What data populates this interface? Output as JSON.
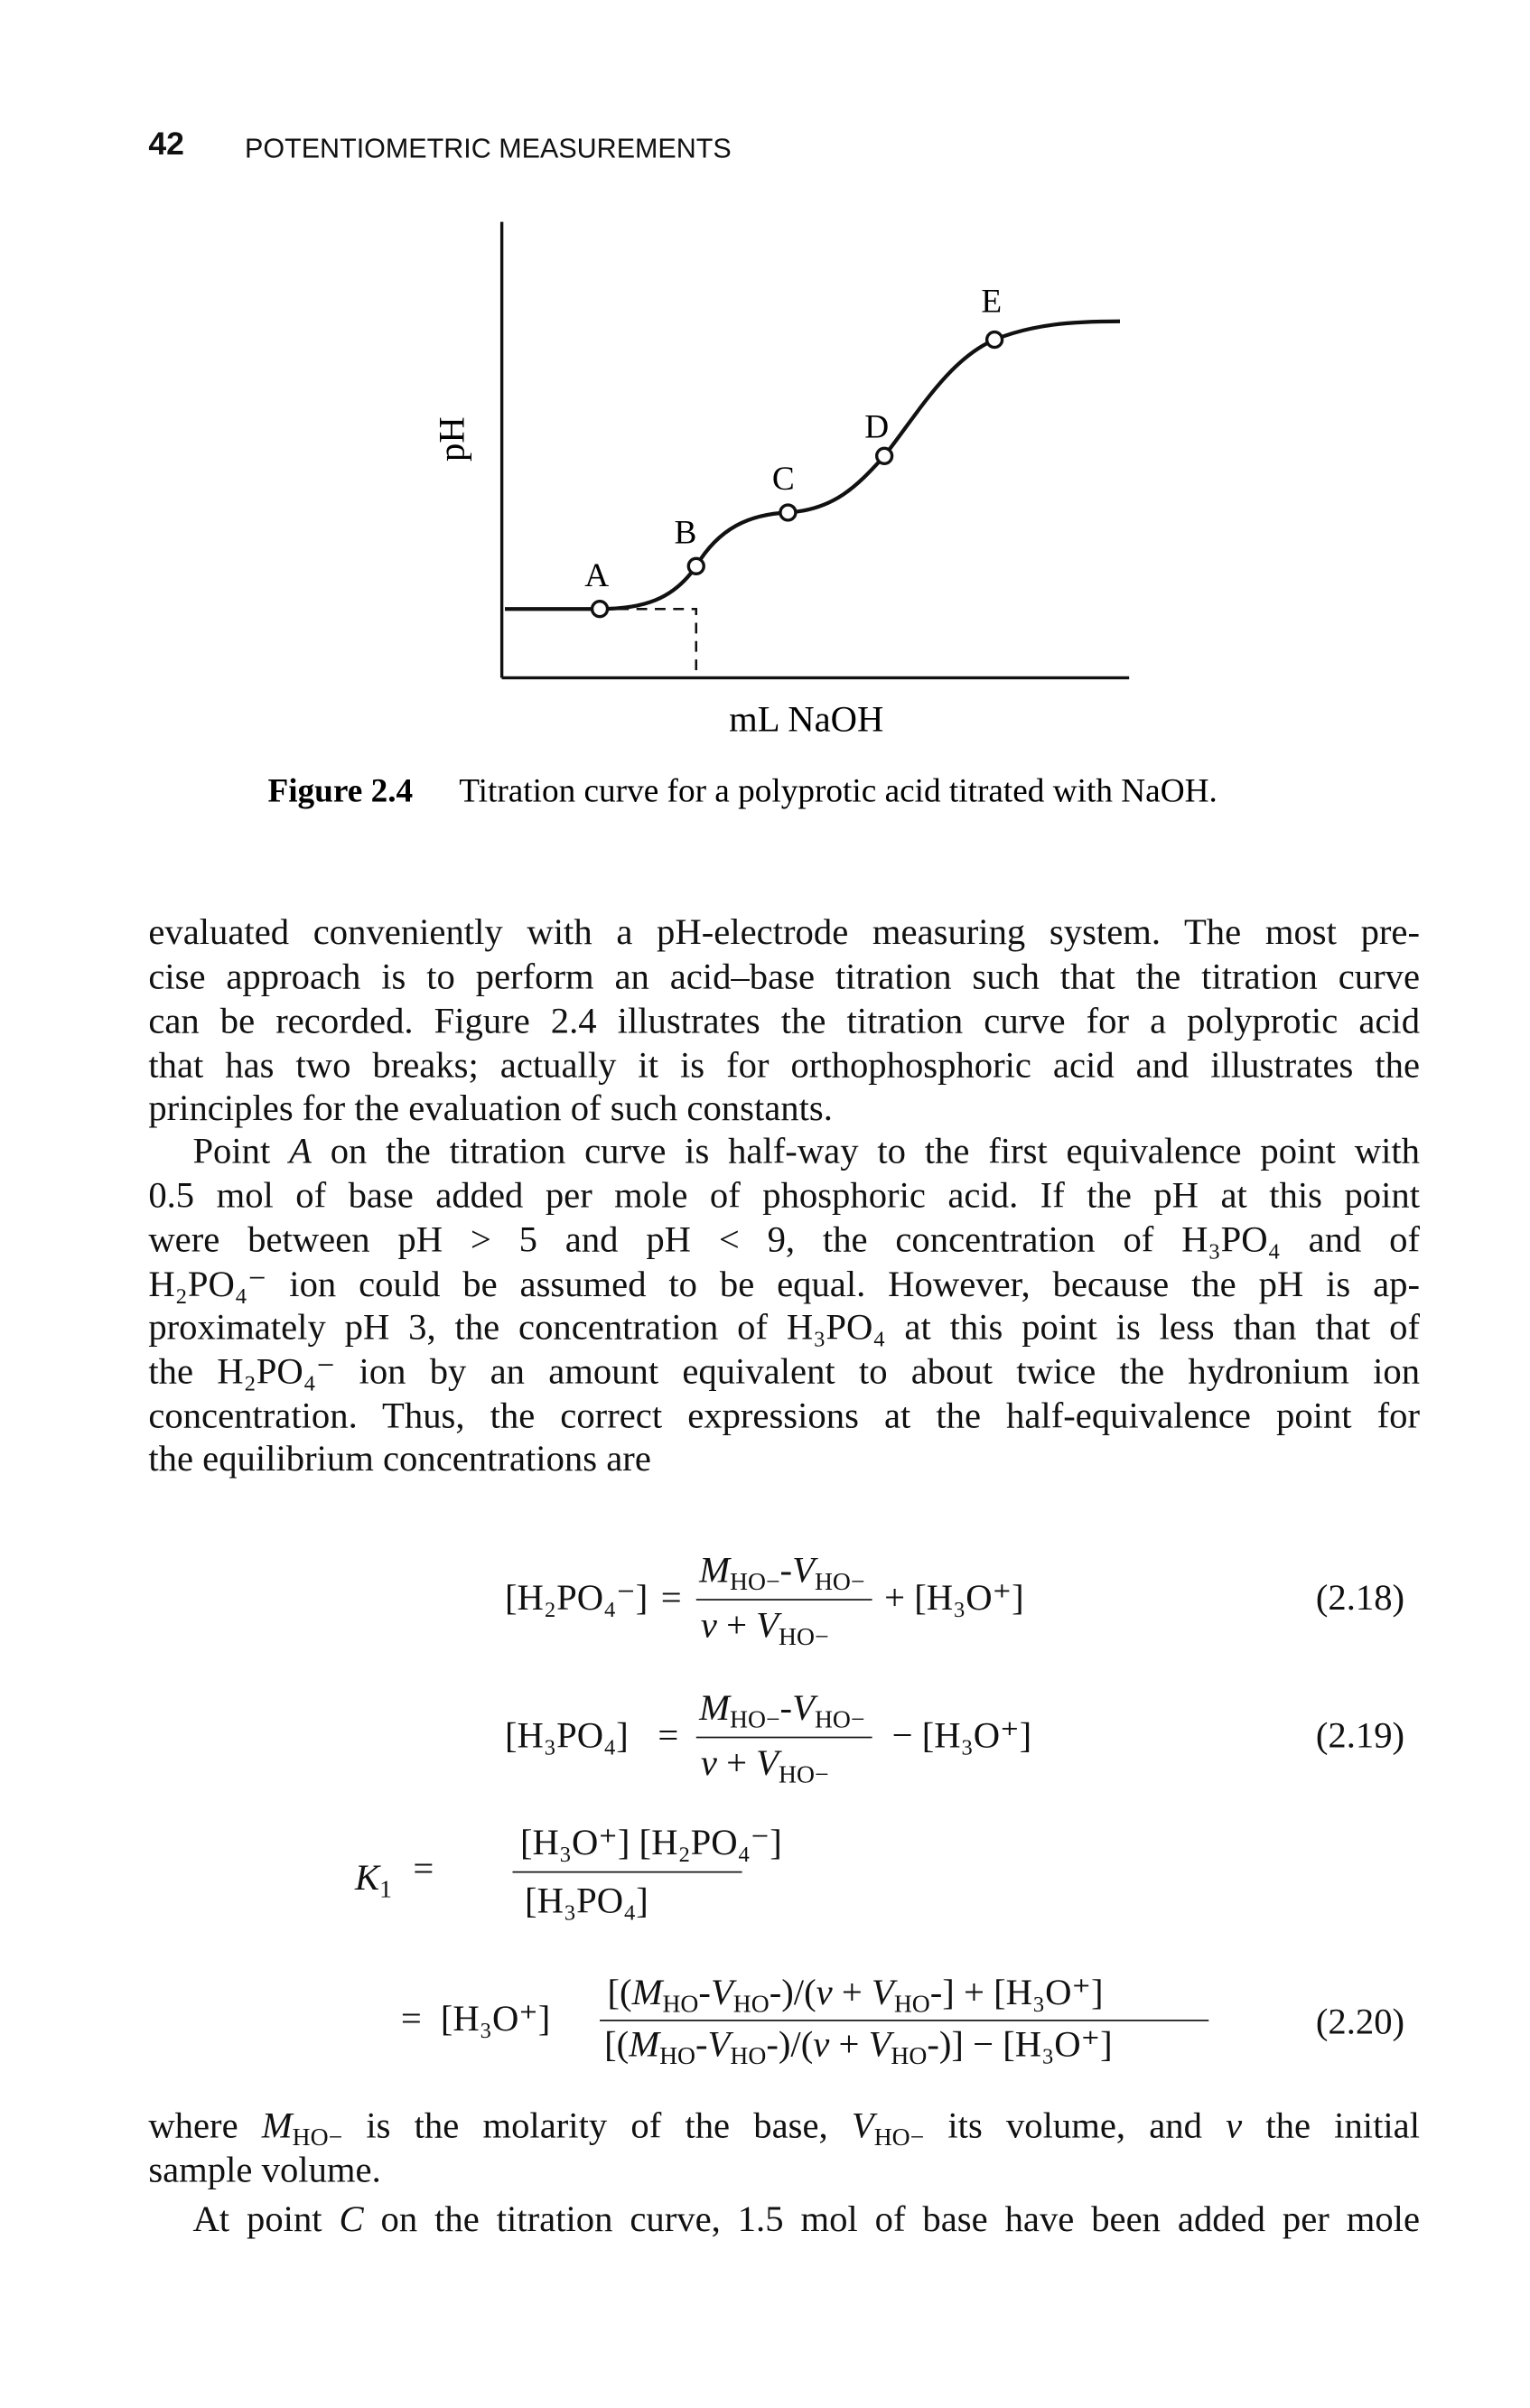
{
  "header": {
    "page_number": "42",
    "running_title": "POTENTIOMETRIC MEASUREMENTS"
  },
  "figure": {
    "y_axis_label": "pH",
    "x_axis_label": "mL NaOH",
    "points": [
      "A",
      "B",
      "C",
      "D",
      "E"
    ],
    "caption_label": "Figure 2.4",
    "caption_text": "Titration curve for a polyprotic acid titrated with NaOH."
  },
  "body": {
    "lines": [
      "evaluated conveniently with a pH-electrode measuring system. The most pre-",
      "cise approach is to perform an acid–base titration such that the titration curve",
      "can be recorded. Figure 2.4 illustrates the titration curve for a polyprotic acid",
      "that has two breaks; actually it is for orthophosphoric acid and illustrates the",
      "principles for the evaluation of such constants.",
      [
        {
          "text": "Point "
        },
        {
          "text": "A",
          "style": "italic"
        },
        {
          "text": " on the titration curve is half-way to the first equivalence point with"
        }
      ],
      "0.5 mol of base added per mole of phosphoric acid. If the pH at this point",
      "were between pH > 5 and pH < 9, the concentration of H₃PO₄ and of",
      "H₂PO₄⁻ ion could be assumed to be equal. However, because the pH is ap-",
      "proximately pH 3, the concentration of H₃PO₄ at this point is less than that of",
      "the H₂PO₄⁻ ion by an amount equivalent to about twice the hydronium ion",
      "concentration. Thus, the correct expressions at the half-equivalence point for",
      "the equilibrium concentrations are"
    ]
  },
  "equations": [
    {
      "lhs": "[H₂PO₄⁻]",
      "op": "=",
      "numerator": [
        {
          "text": "M",
          "style": "italic"
        },
        {
          "text": "HO−",
          "style": "sub"
        },
        {
          "text": "-"
        },
        {
          "text": "V",
          "style": "italic"
        },
        {
          "text": "HO−",
          "style": "sub"
        }
      ],
      "denominator": [
        {
          "text": "v",
          "style": "italic"
        },
        {
          "text": " + "
        },
        {
          "text": "V",
          "style": "italic"
        },
        {
          "text": "HO−",
          "style": "sub"
        }
      ],
      "rhs": "+ [H₃O⁺]",
      "number": "(2.18)"
    },
    {
      "lhs": "[H₃PO₄]",
      "op": "=",
      "numerator": [
        {
          "text": "M",
          "style": "italic"
        },
        {
          "text": "HO−",
          "style": "sub"
        },
        {
          "text": "-"
        },
        {
          "text": "V",
          "style": "italic"
        },
        {
          "text": "HO−",
          "style": "sub"
        }
      ],
      "denominator": [
        {
          "text": "v",
          "style": "italic"
        },
        {
          "text": " + "
        },
        {
          "text": "V",
          "style": "italic"
        },
        {
          "text": "HO−",
          "style": "sub"
        }
      ],
      "rhs": "− [H₃O⁺]",
      "number": "(2.19)"
    },
    {
      "lhs": [
        {
          "text": "K",
          "style": "italic"
        },
        {
          "text": "1",
          "style": "sub"
        }
      ],
      "op": "=",
      "numerator": "[H₃O⁺] [H₂PO₄⁻]",
      "denominator": "[H₃PO₄]"
    },
    {
      "op": "=",
      "lhs": "[H₃O⁺]",
      "numerator": [
        {
          "text": "[("
        },
        {
          "text": "M",
          "style": "italic"
        },
        {
          "text": "HO",
          "style": "sub"
        },
        {
          "text": "-"
        },
        {
          "text": "V",
          "style": "italic"
        },
        {
          "text": "HO",
          "style": "sub"
        },
        {
          "text": "-)/("
        },
        {
          "text": "v",
          "style": "italic"
        },
        {
          "text": " + "
        },
        {
          "text": "V",
          "style": "italic"
        },
        {
          "text": "HO",
          "style": "sub"
        },
        {
          "text": "-] + [H₃O⁺]"
        }
      ],
      "denominator": [
        {
          "text": "[("
        },
        {
          "text": "M",
          "style": "italic"
        },
        {
          "text": "HO",
          "style": "sub"
        },
        {
          "text": "-"
        },
        {
          "text": "V",
          "style": "italic"
        },
        {
          "text": "HO",
          "style": "sub"
        },
        {
          "text": "-)/("
        },
        {
          "text": "v",
          "style": "italic"
        },
        {
          "text": " + "
        },
        {
          "text": "V",
          "style": "italic"
        },
        {
          "text": "HO",
          "style": "sub"
        },
        {
          "text": "-)] − [H₃O⁺]"
        }
      ],
      "number": "(2.20)"
    }
  ],
  "body_after": {
    "lines": [
      [
        {
          "text": "where "
        },
        {
          "text": "M",
          "style": "italic"
        },
        {
          "text": "HO−",
          "style": "sub"
        },
        {
          "text": " is the molarity of the base, "
        },
        {
          "text": "V",
          "style": "italic"
        },
        {
          "text": "HO−",
          "style": "sub"
        },
        {
          "text": " its volume, and "
        },
        {
          "text": "v",
          "style": "italic"
        },
        {
          "text": " the initial"
        }
      ],
      "sample volume.",
      [
        {
          "text": "At point "
        },
        {
          "text": "C",
          "style": "italic"
        },
        {
          "text": " on the titration curve, 1.5 mol of base have been added per mole"
        }
      ]
    ]
  }
}
